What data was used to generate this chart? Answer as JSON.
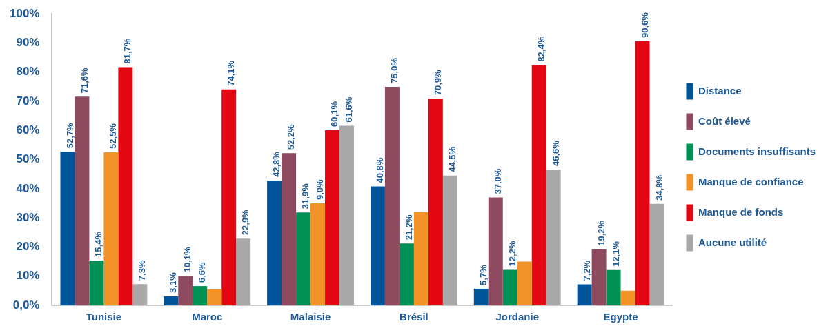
{
  "chart_data": {
    "type": "bar",
    "categories": [
      "Tunisie",
      "Maroc",
      "Malaisie",
      "Brésil",
      "Jordanie",
      "Egypte"
    ],
    "series": [
      {
        "name": "Distance",
        "color": "#00559a",
        "values": [
          52.7,
          3.1,
          42.8,
          40.8,
          5.7,
          7.2
        ],
        "value_labels": [
          "52,7%",
          "3,1%",
          "42,8%",
          "40,8%",
          "5,7%",
          "7,2%"
        ]
      },
      {
        "name": "Coût élevé",
        "color": "#8e4a5e",
        "values": [
          71.6,
          10.1,
          52.2,
          75.0,
          37.0,
          19.2
        ],
        "value_labels": [
          "71,6%",
          "10,1%",
          "52,2%",
          "75,0%",
          "37,0%",
          "19,2%"
        ]
      },
      {
        "name": "Documents insuffisants",
        "color": "#009157",
        "values": [
          15.4,
          6.6,
          31.9,
          21.2,
          12.2,
          12.1
        ],
        "value_labels": [
          "15,4%",
          "6,6%",
          "31,9%",
          "21,2%",
          "12,2%",
          "12,1%"
        ]
      },
      {
        "name": "Manque de confiance",
        "color": "#f29227",
        "values": [
          52.5,
          5.5,
          35,
          32,
          15,
          5
        ],
        "value_labels": [
          "52,5%",
          null,
          null,
          null,
          null,
          null
        ]
      },
      {
        "name": "Manque de fonds",
        "color": "#e30613",
        "values": [
          81.7,
          74.1,
          60.1,
          70.9,
          82.4,
          90.6
        ],
        "value_labels": [
          "81,7%",
          "74,1%",
          "60,1%",
          "70,9%",
          "82,4%",
          "90,6%"
        ]
      },
      {
        "name": "Aucune utilité",
        "color": "#a8a8a8",
        "values": [
          7.3,
          22.9,
          61.6,
          44.5,
          46.6,
          34.8
        ],
        "value_labels": [
          "7,3%",
          "22,9%",
          "61,6%",
          "44,5%",
          "46,6%",
          "34,8%"
        ]
      }
    ],
    "ylim": [
      0,
      100
    ],
    "yticks": [
      {
        "value": 0,
        "label": "0,0%"
      },
      {
        "value": 10,
        "label": "10%"
      },
      {
        "value": 20,
        "label": "20%"
      },
      {
        "value": 30,
        "label": "30%"
      },
      {
        "value": 40,
        "label": "40%"
      },
      {
        "value": 50,
        "label": "50%"
      },
      {
        "value": 60,
        "label": "60%"
      },
      {
        "value": 70,
        "label": "70%"
      },
      {
        "value": 80,
        "label": "80%"
      },
      {
        "value": 90,
        "label": "90%"
      },
      {
        "value": 100,
        "label": "100%"
      }
    ],
    "annotations": [
      {
        "text": "9,0%",
        "x": "Malaisie",
        "y": 35
      }
    ],
    "grid": false,
    "legend": "right"
  }
}
